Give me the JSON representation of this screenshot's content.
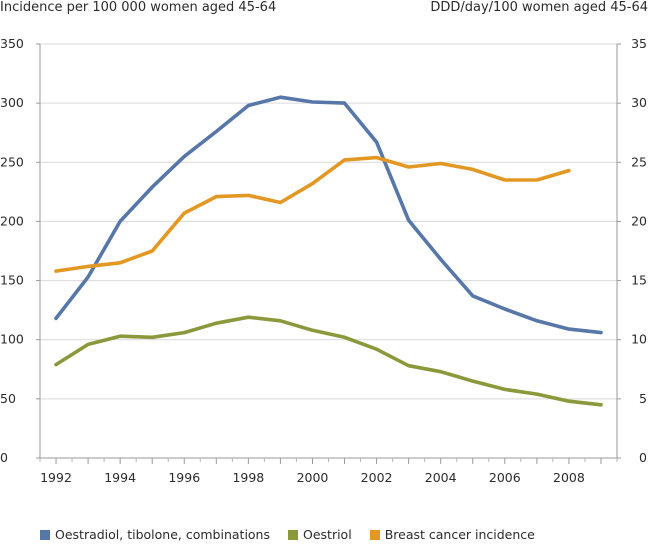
{
  "chart_data": {
    "type": "line",
    "left_axis_title": "Incidence per 100 000 women aged 45-64",
    "right_axis_title": "DDD/day/100 women aged 45-64",
    "x": [
      1992,
      1993,
      1994,
      1995,
      1996,
      1997,
      1998,
      1999,
      2000,
      2001,
      2002,
      2003,
      2004,
      2005,
      2006,
      2007,
      2008,
      2009
    ],
    "xlim": [
      1991.5,
      2009.5
    ],
    "xticks": [
      1992,
      1994,
      1996,
      1998,
      2000,
      2002,
      2004,
      2006,
      2008
    ],
    "ylim_left": [
      0,
      350
    ],
    "ylim_right": [
      0,
      35
    ],
    "yticks_left": [
      0,
      50,
      100,
      150,
      200,
      250,
      300,
      350
    ],
    "yticks_right": [
      0,
      5,
      10,
      15,
      20,
      25,
      30,
      35
    ],
    "grid": true,
    "legend_position": "bottom",
    "series": [
      {
        "name": "Oestradiol, tibolone, combinations",
        "axis": "right",
        "color": "#5777a9",
        "values": [
          11.8,
          15.3,
          20.0,
          22.9,
          25.5,
          27.6,
          29.8,
          30.5,
          30.1,
          30.0,
          26.7,
          20.1,
          16.8,
          13.7,
          12.6,
          11.6,
          10.9,
          10.6
        ]
      },
      {
        "name": "Oestriol",
        "axis": "right",
        "color": "#8b983b",
        "values": [
          7.9,
          9.6,
          10.3,
          10.2,
          10.6,
          11.4,
          11.9,
          11.6,
          10.8,
          10.2,
          9.2,
          7.8,
          7.3,
          6.5,
          5.8,
          5.4,
          4.8,
          4.5
        ]
      },
      {
        "name": "Breast cancer incidence",
        "axis": "left",
        "color": "#e39824",
        "values": [
          158,
          162,
          165,
          175,
          207,
          221,
          222,
          216,
          232,
          252,
          254,
          246,
          249,
          244,
          235,
          235,
          243,
          null
        ]
      }
    ]
  }
}
